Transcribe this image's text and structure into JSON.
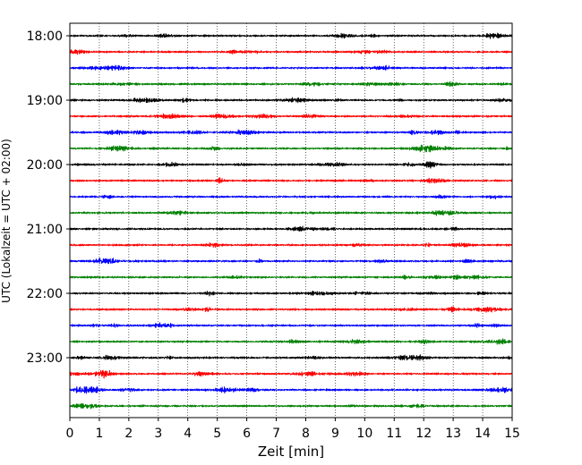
{
  "chart_data": {
    "type": "line",
    "title": "",
    "xlabel": "Zeit  [min]",
    "ylabel": "UTC (Lokalzeit = UTC + 02:00)",
    "xlim": [
      0,
      15
    ],
    "x_ticks": [
      0,
      1,
      2,
      3,
      4,
      5,
      6,
      7,
      8,
      9,
      10,
      11,
      12,
      13,
      14,
      15
    ],
    "y_tick_labels": [
      "18:00",
      "19:00",
      "20:00",
      "21:00",
      "22:00",
      "23:00"
    ],
    "grid": "vertical dotted at each minute",
    "trace_interval_min": 15,
    "traces": [
      {
        "time": "18:00",
        "color": "#000000"
      },
      {
        "time": "18:15",
        "color": "#ff0000"
      },
      {
        "time": "18:30",
        "color": "#0000ff"
      },
      {
        "time": "18:45",
        "color": "#008000"
      },
      {
        "time": "19:00",
        "color": "#000000"
      },
      {
        "time": "19:15",
        "color": "#ff0000"
      },
      {
        "time": "19:30",
        "color": "#0000ff"
      },
      {
        "time": "19:45",
        "color": "#008000"
      },
      {
        "time": "20:00",
        "color": "#000000"
      },
      {
        "time": "20:15",
        "color": "#ff0000"
      },
      {
        "time": "20:30",
        "color": "#0000ff"
      },
      {
        "time": "20:45",
        "color": "#008000"
      },
      {
        "time": "21:00",
        "color": "#000000"
      },
      {
        "time": "21:15",
        "color": "#ff0000"
      },
      {
        "time": "21:30",
        "color": "#0000ff"
      },
      {
        "time": "21:45",
        "color": "#008000"
      },
      {
        "time": "22:00",
        "color": "#000000"
      },
      {
        "time": "22:15",
        "color": "#ff0000"
      },
      {
        "time": "22:30",
        "color": "#0000ff"
      },
      {
        "time": "22:45",
        "color": "#008000"
      },
      {
        "time": "23:00",
        "color": "#000000"
      },
      {
        "time": "23:15",
        "color": "#ff0000"
      },
      {
        "time": "23:30",
        "color": "#0000ff"
      },
      {
        "time": "23:45",
        "color": "#008000"
      }
    ]
  }
}
